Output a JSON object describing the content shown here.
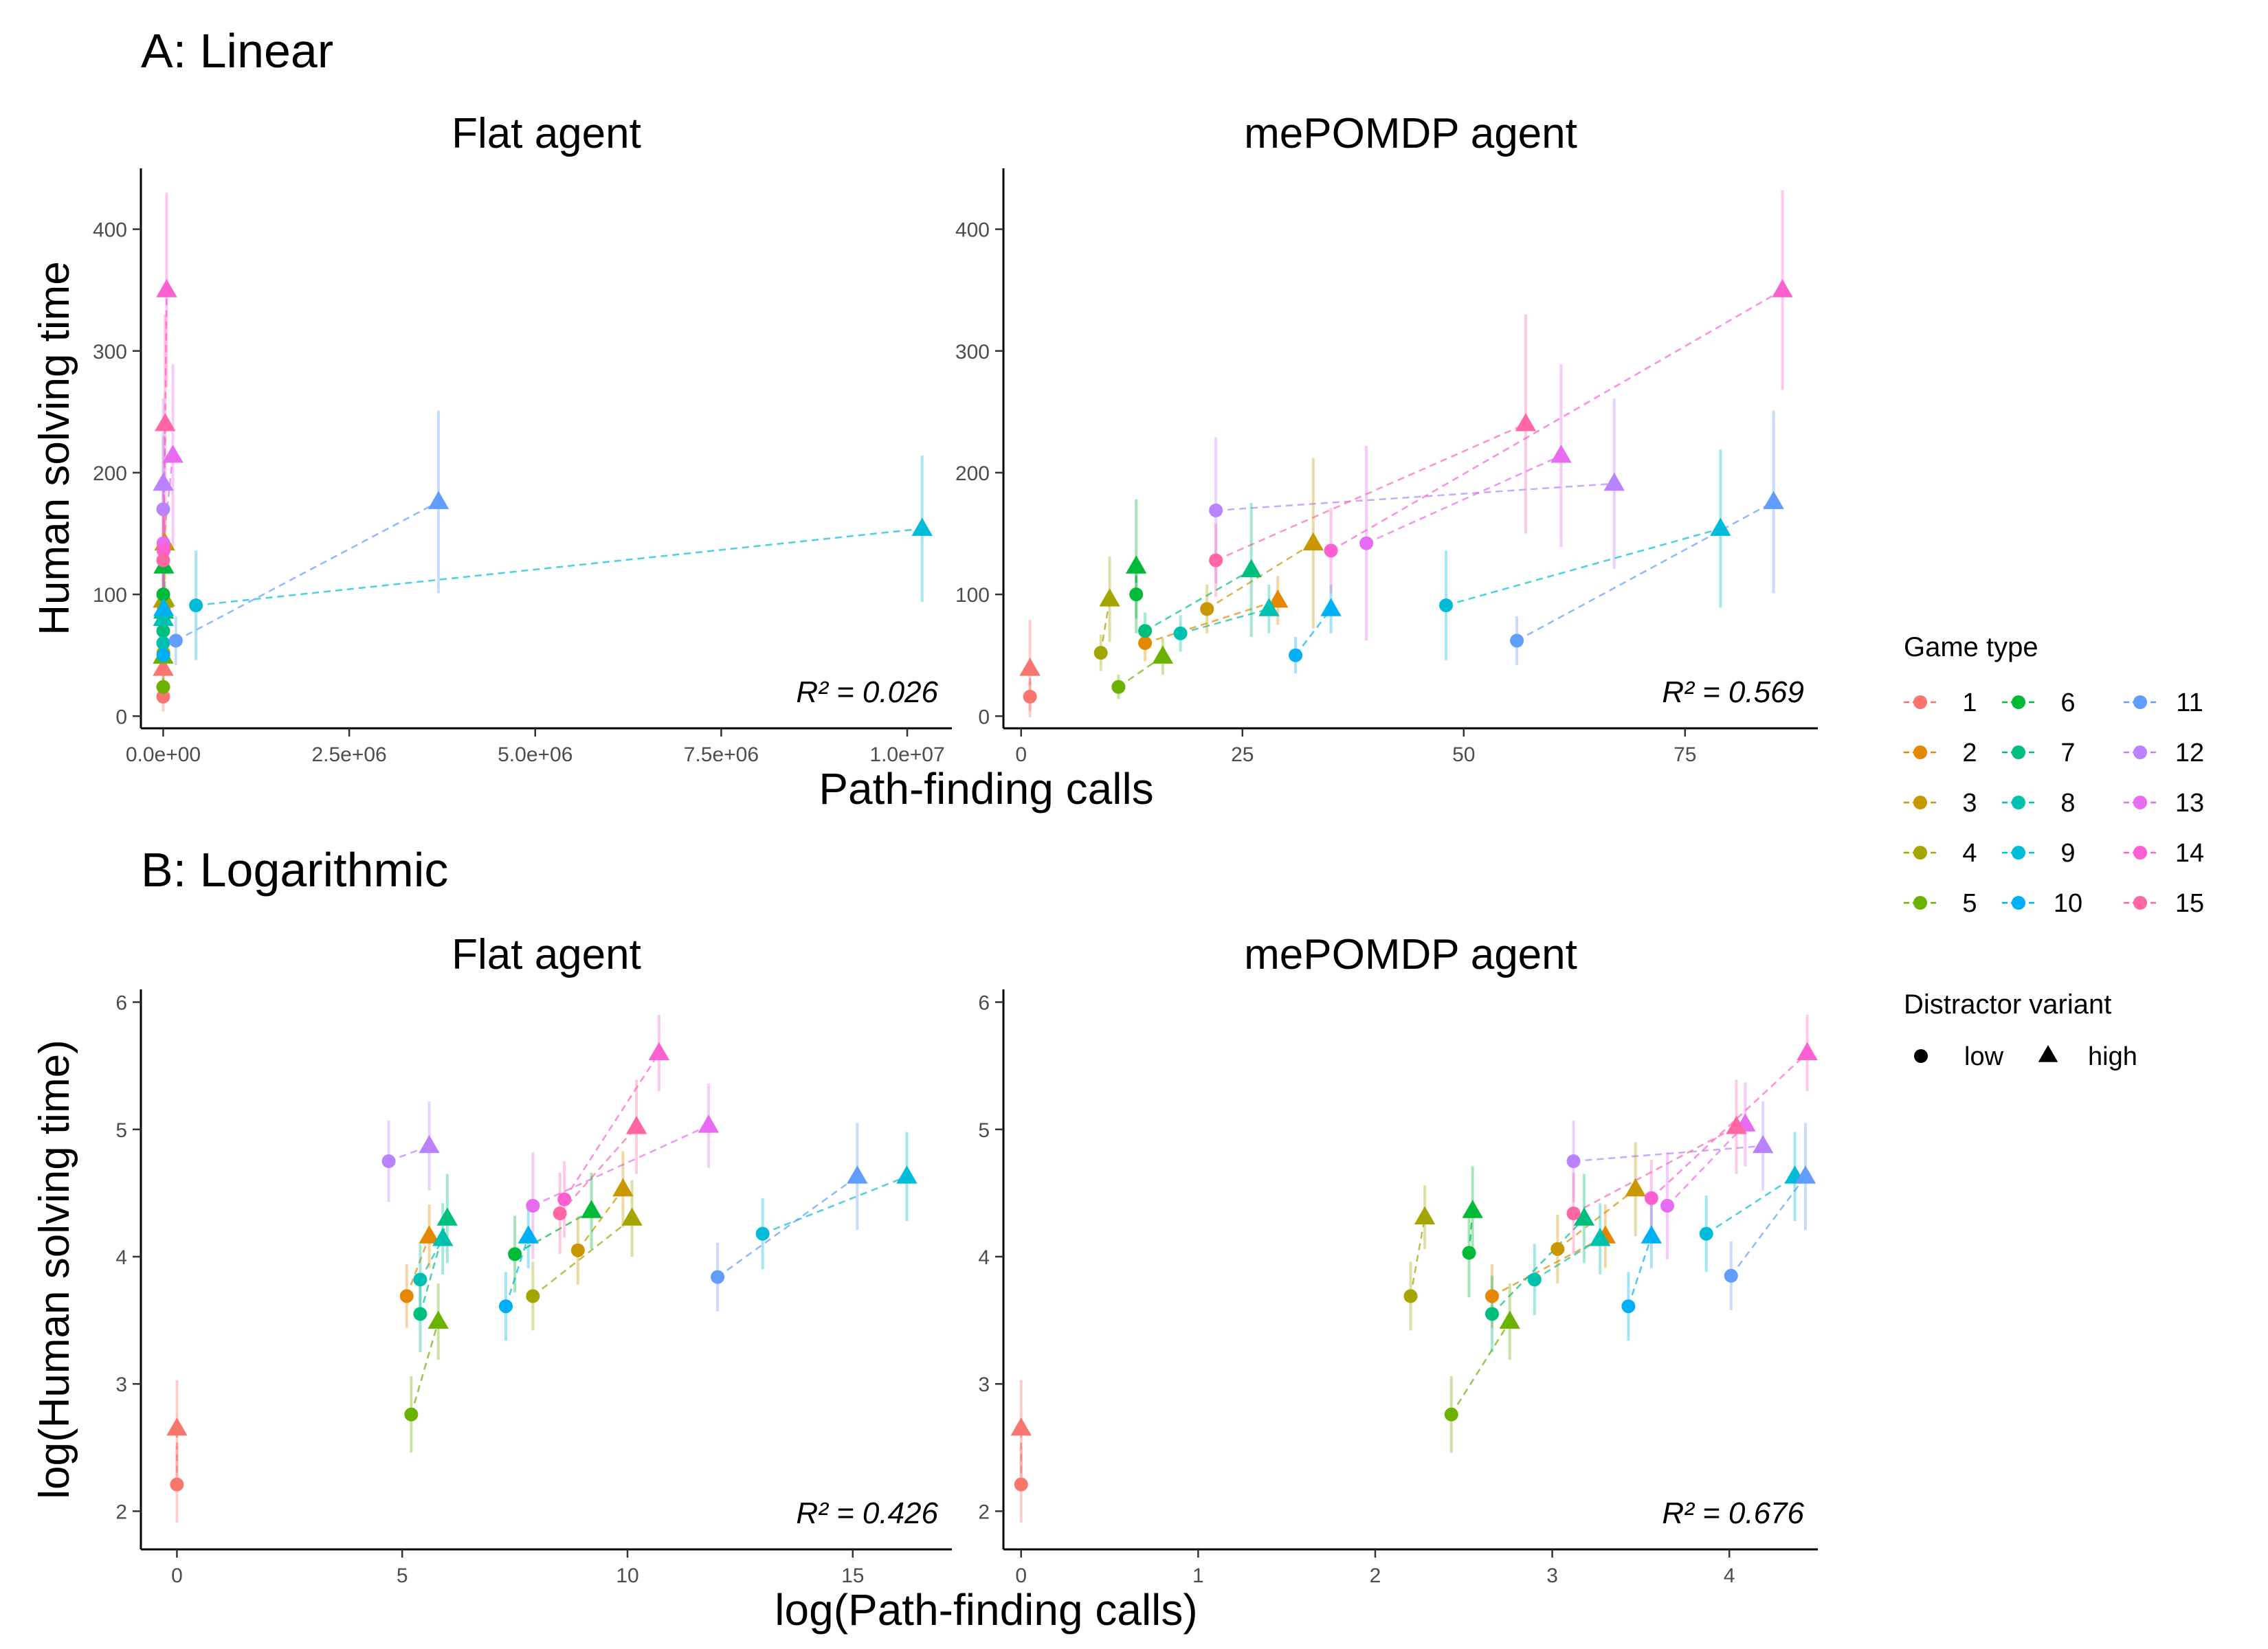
{
  "figure": {
    "section_a": "A: Linear",
    "section_b": "B: Logarithmic",
    "shared_xlabel_a": "Path-finding calls",
    "shared_xlabel_b": "log(Path-finding calls)"
  },
  "legend": {
    "game_title": "Game type",
    "game_items": [
      {
        "label": "1",
        "color": "#F8766D"
      },
      {
        "label": "2",
        "color": "#E58700"
      },
      {
        "label": "3",
        "color": "#C99800"
      },
      {
        "label": "4",
        "color": "#A3A500"
      },
      {
        "label": "5",
        "color": "#6BB100"
      },
      {
        "label": "6",
        "color": "#00BA38"
      },
      {
        "label": "7",
        "color": "#00BF7D"
      },
      {
        "label": "8",
        "color": "#00C0AF"
      },
      {
        "label": "9",
        "color": "#00BCD8"
      },
      {
        "label": "10",
        "color": "#00B0F6"
      },
      {
        "label": "11",
        "color": "#619CFF"
      },
      {
        "label": "12",
        "color": "#B983FF"
      },
      {
        "label": "13",
        "color": "#E76BF3"
      },
      {
        "label": "14",
        "color": "#FD61D1"
      },
      {
        "label": "15",
        "color": "#FF67A4"
      }
    ],
    "variant_title": "Distractor variant",
    "variant_items": [
      {
        "label": "low",
        "shape": "circle"
      },
      {
        "label": "high",
        "shape": "triangle"
      }
    ]
  },
  "chart_data": [
    {
      "type": "scatter",
      "title": "Flat agent",
      "ylabel": "Human solving time",
      "r2": "R² = 0.026",
      "xlim": [
        -300000,
        10600000
      ],
      "ylim": [
        -10,
        450
      ],
      "xticks": [
        0,
        2500000,
        5000000,
        7500000,
        10000000
      ],
      "xtick_labels": [
        "0.0e+00",
        "2.5e+06",
        "5.0e+06",
        "7.5e+06",
        "1.0e+07"
      ],
      "yticks": [
        0,
        100,
        200,
        300,
        400
      ],
      "ytick_labels": [
        "0",
        "100",
        "200",
        "300",
        "400"
      ],
      "points": [
        {
          "game": 1,
          "variant": "low",
          "x": 2,
          "y": 16,
          "err": 12
        },
        {
          "game": 1,
          "variant": "high",
          "x": 3,
          "y": 39,
          "err": 16
        },
        {
          "game": 2,
          "variant": "low",
          "x": 180,
          "y": 60,
          "err": 15
        },
        {
          "game": 2,
          "variant": "high",
          "x": 250,
          "y": 95,
          "err": 20
        },
        {
          "game": 3,
          "variant": "low",
          "x": 8000,
          "y": 88,
          "err": 20
        },
        {
          "game": 3,
          "variant": "high",
          "x": 20000,
          "y": 142,
          "err": 30
        },
        {
          "game": 4,
          "variant": "low",
          "x": 2600,
          "y": 52,
          "err": 15
        },
        {
          "game": 4,
          "variant": "high",
          "x": 20000,
          "y": 96,
          "err": 15
        },
        {
          "game": 5,
          "variant": "low",
          "x": 150,
          "y": 24,
          "err": 10
        },
        {
          "game": 5,
          "variant": "high",
          "x": 330,
          "y": 49,
          "err": 15
        },
        {
          "game": 6,
          "variant": "low",
          "x": 500,
          "y": 100,
          "err": 20
        },
        {
          "game": 6,
          "variant": "high",
          "x": 9000,
          "y": 123,
          "err": 25
        },
        {
          "game": 7,
          "variant": "low",
          "x": 220,
          "y": 70,
          "err": 15
        },
        {
          "game": 7,
          "variant": "high",
          "x": 6500,
          "y": 86,
          "err": 25
        },
        {
          "game": 8,
          "variant": "low",
          "x": 250,
          "y": 60,
          "err": 15
        },
        {
          "game": 8,
          "variant": "high",
          "x": 2500,
          "y": 80,
          "err": 20
        },
        {
          "game": 9,
          "variant": "low",
          "x": 440000,
          "y": 91,
          "err": 45
        },
        {
          "game": 9,
          "variant": "high",
          "x": 10200000,
          "y": 154,
          "err": 60
        },
        {
          "game": 10,
          "variant": "low",
          "x": 1500,
          "y": 50,
          "err": 15
        },
        {
          "game": 10,
          "variant": "high",
          "x": 6500,
          "y": 88,
          "err": 20
        },
        {
          "game": 11,
          "variant": "low",
          "x": 170000,
          "y": 62,
          "err": 20
        },
        {
          "game": 11,
          "variant": "high",
          "x": 3700000,
          "y": 176,
          "err": 75
        },
        {
          "game": 12,
          "variant": "low",
          "x": 100,
          "y": 170,
          "err": 60
        },
        {
          "game": 12,
          "variant": "high",
          "x": 300,
          "y": 191,
          "err": 70
        },
        {
          "game": 13,
          "variant": "low",
          "x": 2700,
          "y": 142,
          "err": 40
        },
        {
          "game": 13,
          "variant": "high",
          "x": 130000,
          "y": 214,
          "err": 75
        },
        {
          "game": 14,
          "variant": "low",
          "x": 5000,
          "y": 136,
          "err": 35
        },
        {
          "game": 14,
          "variant": "high",
          "x": 46000,
          "y": 350,
          "err": 80
        },
        {
          "game": 15,
          "variant": "low",
          "x": 240,
          "y": 128,
          "err": 40
        },
        {
          "game": 15,
          "variant": "high",
          "x": 26000,
          "y": 240,
          "err": 90
        }
      ]
    },
    {
      "type": "scatter",
      "title": "mePOMDP agent",
      "ylabel": "",
      "r2": "R² = 0.569",
      "xlim": [
        -2,
        90
      ],
      "ylim": [
        -10,
        450
      ],
      "xticks": [
        0,
        25,
        50,
        75
      ],
      "xtick_labels": [
        "0",
        "25",
        "50",
        "75"
      ],
      "yticks": [
        0,
        100,
        200,
        300,
        400
      ],
      "ytick_labels": [
        "0",
        "100",
        "200",
        "300",
        "400"
      ],
      "points": [
        {
          "game": 1,
          "variant": "low",
          "x": 1,
          "y": 16,
          "err": 12
        },
        {
          "game": 1,
          "variant": "high",
          "x": 1,
          "y": 39,
          "err": 40
        },
        {
          "game": 2,
          "variant": "low",
          "x": 14,
          "y": 60,
          "err": 15
        },
        {
          "game": 2,
          "variant": "high",
          "x": 29,
          "y": 95,
          "err": 20
        },
        {
          "game": 3,
          "variant": "low",
          "x": 21,
          "y": 88,
          "err": 20
        },
        {
          "game": 3,
          "variant": "high",
          "x": 33,
          "y": 142,
          "err": 70
        },
        {
          "game": 4,
          "variant": "low",
          "x": 9,
          "y": 52,
          "err": 15
        },
        {
          "game": 4,
          "variant": "high",
          "x": 10,
          "y": 96,
          "err": 35
        },
        {
          "game": 5,
          "variant": "low",
          "x": 11,
          "y": 24,
          "err": 10
        },
        {
          "game": 5,
          "variant": "high",
          "x": 16,
          "y": 49,
          "err": 15
        },
        {
          "game": 6,
          "variant": "low",
          "x": 13,
          "y": 100,
          "err": 20
        },
        {
          "game": 6,
          "variant": "high",
          "x": 13,
          "y": 123,
          "err": 55
        },
        {
          "game": 7,
          "variant": "low",
          "x": 14,
          "y": 70,
          "err": 15
        },
        {
          "game": 7,
          "variant": "high",
          "x": 26,
          "y": 120,
          "err": 55
        },
        {
          "game": 8,
          "variant": "low",
          "x": 18,
          "y": 68,
          "err": 15
        },
        {
          "game": 8,
          "variant": "high",
          "x": 28,
          "y": 88,
          "err": 20
        },
        {
          "game": 9,
          "variant": "low",
          "x": 48,
          "y": 91,
          "err": 45
        },
        {
          "game": 9,
          "variant": "high",
          "x": 79,
          "y": 154,
          "err": 65
        },
        {
          "game": 10,
          "variant": "low",
          "x": 31,
          "y": 50,
          "err": 15
        },
        {
          "game": 10,
          "variant": "high",
          "x": 35,
          "y": 88,
          "err": 20
        },
        {
          "game": 11,
          "variant": "low",
          "x": 56,
          "y": 62,
          "err": 20
        },
        {
          "game": 11,
          "variant": "high",
          "x": 85,
          "y": 176,
          "err": 75
        },
        {
          "game": 12,
          "variant": "low",
          "x": 22,
          "y": 169,
          "err": 60
        },
        {
          "game": 12,
          "variant": "high",
          "x": 67,
          "y": 191,
          "err": 70
        },
        {
          "game": 13,
          "variant": "low",
          "x": 39,
          "y": 142,
          "err": 80
        },
        {
          "game": 13,
          "variant": "high",
          "x": 61,
          "y": 214,
          "err": 75
        },
        {
          "game": 14,
          "variant": "low",
          "x": 35,
          "y": 136,
          "err": 35
        },
        {
          "game": 14,
          "variant": "high",
          "x": 86,
          "y": 350,
          "err": 82
        },
        {
          "game": 15,
          "variant": "low",
          "x": 22,
          "y": 128,
          "err": 30
        },
        {
          "game": 15,
          "variant": "high",
          "x": 57,
          "y": 240,
          "err": 90
        }
      ]
    },
    {
      "type": "scatter",
      "title": "Flat agent",
      "ylabel": "log(Human solving time)",
      "r2": "R² = 0.426",
      "xlim": [
        -0.8,
        17.2
      ],
      "ylim": [
        1.7,
        6.1
      ],
      "xticks": [
        0,
        5,
        10,
        15
      ],
      "xtick_labels": [
        "0",
        "5",
        "10",
        "15"
      ],
      "yticks": [
        2,
        3,
        4,
        5,
        6
      ],
      "ytick_labels": [
        "2",
        "3",
        "4",
        "5",
        "6"
      ],
      "points": [
        {
          "game": 1,
          "variant": "low",
          "x": 0,
          "y": 2.21,
          "err": 0.3
        },
        {
          "game": 1,
          "variant": "high",
          "x": 0,
          "y": 2.65,
          "err": 0.38
        },
        {
          "game": 2,
          "variant": "low",
          "x": 5.1,
          "y": 3.69,
          "err": 0.25
        },
        {
          "game": 2,
          "variant": "high",
          "x": 5.6,
          "y": 4.16,
          "err": 0.25
        },
        {
          "game": 3,
          "variant": "low",
          "x": 8.9,
          "y": 4.05,
          "err": 0.27
        },
        {
          "game": 3,
          "variant": "high",
          "x": 9.9,
          "y": 4.53,
          "err": 0.3
        },
        {
          "game": 4,
          "variant": "low",
          "x": 7.9,
          "y": 3.69,
          "err": 0.27
        },
        {
          "game": 4,
          "variant": "high",
          "x": 10.1,
          "y": 4.3,
          "err": 0.3
        },
        {
          "game": 5,
          "variant": "low",
          "x": 5.2,
          "y": 2.76,
          "err": 0.3
        },
        {
          "game": 5,
          "variant": "high",
          "x": 5.8,
          "y": 3.49,
          "err": 0.3
        },
        {
          "game": 6,
          "variant": "low",
          "x": 7.5,
          "y": 4.02,
          "err": 0.3
        },
        {
          "game": 6,
          "variant": "high",
          "x": 9.2,
          "y": 4.36,
          "err": 0.3
        },
        {
          "game": 7,
          "variant": "low",
          "x": 5.4,
          "y": 3.55,
          "err": 0.3
        },
        {
          "game": 7,
          "variant": "high",
          "x": 6,
          "y": 4.3,
          "err": 0.35
        },
        {
          "game": 8,
          "variant": "low",
          "x": 5.4,
          "y": 3.82,
          "err": 0.28
        },
        {
          "game": 8,
          "variant": "high",
          "x": 5.9,
          "y": 4.14,
          "err": 0.28
        },
        {
          "game": 9,
          "variant": "low",
          "x": 13,
          "y": 4.18,
          "err": 0.28
        },
        {
          "game": 9,
          "variant": "high",
          "x": 16.2,
          "y": 4.63,
          "err": 0.35
        },
        {
          "game": 10,
          "variant": "low",
          "x": 7.3,
          "y": 3.61,
          "err": 0.27
        },
        {
          "game": 10,
          "variant": "high",
          "x": 7.8,
          "y": 4.16,
          "err": 0.25
        },
        {
          "game": 11,
          "variant": "low",
          "x": 12,
          "y": 3.84,
          "err": 0.27
        },
        {
          "game": 11,
          "variant": "high",
          "x": 15.1,
          "y": 4.63,
          "err": 0.42
        },
        {
          "game": 12,
          "variant": "low",
          "x": 4.7,
          "y": 4.75,
          "err": 0.32
        },
        {
          "game": 12,
          "variant": "high",
          "x": 5.6,
          "y": 4.87,
          "err": 0.35
        },
        {
          "game": 13,
          "variant": "low",
          "x": 7.9,
          "y": 4.4,
          "err": 0.42
        },
        {
          "game": 13,
          "variant": "high",
          "x": 11.8,
          "y": 5.03,
          "err": 0.33
        },
        {
          "game": 14,
          "variant": "low",
          "x": 8.6,
          "y": 4.45,
          "err": 0.3
        },
        {
          "game": 14,
          "variant": "high",
          "x": 10.7,
          "y": 5.6,
          "err": 0.3
        },
        {
          "game": 15,
          "variant": "low",
          "x": 8.5,
          "y": 4.34,
          "err": 0.32
        },
        {
          "game": 15,
          "variant": "high",
          "x": 10.2,
          "y": 5.02,
          "err": 0.37
        }
      ]
    },
    {
      "type": "scatter",
      "title": "mePOMDP agent",
      "ylabel": "",
      "r2": "R² = 0.676",
      "xlim": [
        -0.1,
        4.5
      ],
      "ylim": [
        1.7,
        6.1
      ],
      "xticks": [
        0,
        1,
        2,
        3,
        4
      ],
      "xtick_labels": [
        "0",
        "1",
        "2",
        "3",
        "4"
      ],
      "yticks": [
        2,
        3,
        4,
        5,
        6
      ],
      "ytick_labels": [
        "2",
        "3",
        "4",
        "5",
        "6"
      ],
      "points": [
        {
          "game": 1,
          "variant": "low",
          "x": 0,
          "y": 2.21,
          "err": 0.3
        },
        {
          "game": 1,
          "variant": "high",
          "x": 0,
          "y": 2.65,
          "err": 0.38
        },
        {
          "game": 2,
          "variant": "low",
          "x": 2.66,
          "y": 3.69,
          "err": 0.25
        },
        {
          "game": 2,
          "variant": "high",
          "x": 3.3,
          "y": 4.16,
          "err": 0.25
        },
        {
          "game": 3,
          "variant": "low",
          "x": 3.03,
          "y": 4.06,
          "err": 0.27
        },
        {
          "game": 3,
          "variant": "high",
          "x": 3.47,
          "y": 4.53,
          "err": 0.37
        },
        {
          "game": 4,
          "variant": "low",
          "x": 2.2,
          "y": 3.69,
          "err": 0.27
        },
        {
          "game": 4,
          "variant": "high",
          "x": 2.28,
          "y": 4.31,
          "err": 0.25
        },
        {
          "game": 5,
          "variant": "low",
          "x": 2.43,
          "y": 2.76,
          "err": 0.3
        },
        {
          "game": 5,
          "variant": "high",
          "x": 2.76,
          "y": 3.49,
          "err": 0.3
        },
        {
          "game": 6,
          "variant": "low",
          "x": 2.53,
          "y": 4.03,
          "err": 0.35
        },
        {
          "game": 6,
          "variant": "high",
          "x": 2.55,
          "y": 4.36,
          "err": 0.35
        },
        {
          "game": 7,
          "variant": "low",
          "x": 2.66,
          "y": 3.55,
          "err": 0.3
        },
        {
          "game": 7,
          "variant": "high",
          "x": 3.18,
          "y": 4.3,
          "err": 0.35
        },
        {
          "game": 8,
          "variant": "low",
          "x": 2.9,
          "y": 3.82,
          "err": 0.28
        },
        {
          "game": 8,
          "variant": "high",
          "x": 3.27,
          "y": 4.14,
          "err": 0.28
        },
        {
          "game": 9,
          "variant": "low",
          "x": 3.87,
          "y": 4.18,
          "err": 0.3
        },
        {
          "game": 9,
          "variant": "high",
          "x": 4.37,
          "y": 4.63,
          "err": 0.35
        },
        {
          "game": 10,
          "variant": "low",
          "x": 3.43,
          "y": 3.61,
          "err": 0.27
        },
        {
          "game": 10,
          "variant": "high",
          "x": 3.56,
          "y": 4.16,
          "err": 0.25
        },
        {
          "game": 11,
          "variant": "low",
          "x": 4.01,
          "y": 3.85,
          "err": 0.27
        },
        {
          "game": 11,
          "variant": "high",
          "x": 4.43,
          "y": 4.63,
          "err": 0.42
        },
        {
          "game": 12,
          "variant": "low",
          "x": 3.12,
          "y": 4.75,
          "err": 0.32
        },
        {
          "game": 12,
          "variant": "high",
          "x": 4.19,
          "y": 4.87,
          "err": 0.35
        },
        {
          "game": 13,
          "variant": "low",
          "x": 3.65,
          "y": 4.4,
          "err": 0.42
        },
        {
          "game": 13,
          "variant": "high",
          "x": 4.09,
          "y": 5.04,
          "err": 0.33
        },
        {
          "game": 14,
          "variant": "low",
          "x": 3.56,
          "y": 4.46,
          "err": 0.3
        },
        {
          "game": 14,
          "variant": "high",
          "x": 4.44,
          "y": 5.6,
          "err": 0.3
        },
        {
          "game": 15,
          "variant": "low",
          "x": 3.12,
          "y": 4.34,
          "err": 0.32
        },
        {
          "game": 15,
          "variant": "high",
          "x": 4.04,
          "y": 5.02,
          "err": 0.37
        }
      ]
    }
  ]
}
